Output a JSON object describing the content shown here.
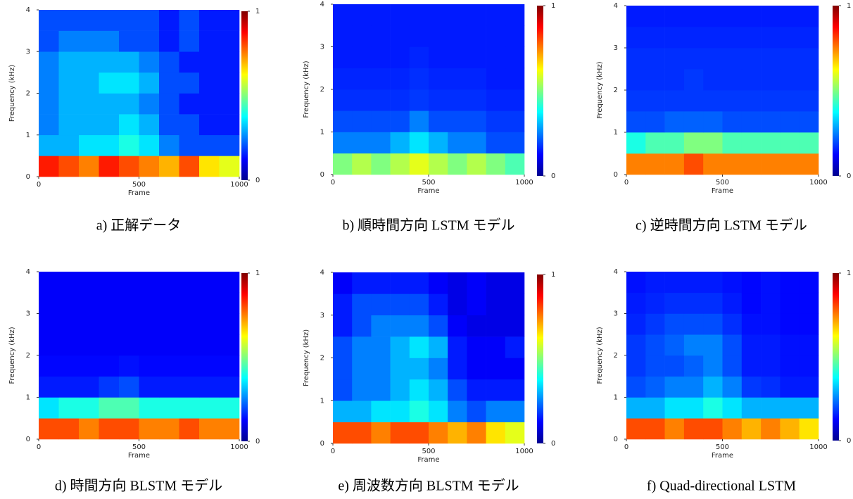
{
  "chart_data": [
    {
      "type": "heatmap",
      "caption": "a) 正解データ",
      "xlabel": "Frame",
      "ylabel": "Frequency (kHz)",
      "xlim": [
        0,
        1000
      ],
      "xticks": [
        0,
        500,
        1000
      ],
      "ylim": [
        0,
        4
      ],
      "yticks": [
        0,
        1,
        2,
        3,
        4
      ],
      "clim": [
        0,
        1
      ],
      "cticks": [
        0,
        1
      ],
      "z": [
        [
          0.85,
          0.8,
          0.75,
          0.85,
          0.8,
          0.75,
          0.7,
          0.8,
          0.65,
          0.6
        ],
        [
          0.3,
          0.3,
          0.35,
          0.35,
          0.4,
          0.35,
          0.25,
          0.2,
          0.2,
          0.2
        ],
        [
          0.25,
          0.3,
          0.3,
          0.3,
          0.35,
          0.3,
          0.2,
          0.2,
          0.15,
          0.15
        ],
        [
          0.25,
          0.3,
          0.3,
          0.3,
          0.3,
          0.25,
          0.2,
          0.15,
          0.15,
          0.15
        ],
        [
          0.25,
          0.3,
          0.3,
          0.35,
          0.35,
          0.3,
          0.2,
          0.2,
          0.15,
          0.15
        ],
        [
          0.25,
          0.3,
          0.3,
          0.3,
          0.3,
          0.25,
          0.2,
          0.15,
          0.15,
          0.15
        ],
        [
          0.2,
          0.25,
          0.25,
          0.25,
          0.2,
          0.2,
          0.15,
          0.2,
          0.15,
          0.15
        ],
        [
          0.2,
          0.2,
          0.2,
          0.2,
          0.2,
          0.2,
          0.15,
          0.2,
          0.15,
          0.15
        ]
      ]
    },
    {
      "type": "heatmap",
      "caption": "b) 順時間方向 LSTM モデル",
      "xlabel": "Frame",
      "ylabel": "Frequency (kHz)",
      "xlim": [
        0,
        1000
      ],
      "xticks": [
        0,
        500,
        1000
      ],
      "ylim": [
        0,
        4
      ],
      "yticks": [
        0,
        1,
        2,
        3,
        4
      ],
      "clim": [
        0,
        1
      ],
      "cticks": [
        0,
        1
      ],
      "z": [
        [
          0.5,
          0.55,
          0.5,
          0.55,
          0.6,
          0.55,
          0.5,
          0.55,
          0.5,
          0.45
        ],
        [
          0.25,
          0.25,
          0.25,
          0.3,
          0.35,
          0.3,
          0.25,
          0.25,
          0.2,
          0.2
        ],
        [
          0.2,
          0.2,
          0.2,
          0.2,
          0.25,
          0.2,
          0.2,
          0.2,
          0.18,
          0.18
        ],
        [
          0.17,
          0.17,
          0.17,
          0.17,
          0.18,
          0.17,
          0.17,
          0.17,
          0.16,
          0.16
        ],
        [
          0.16,
          0.16,
          0.16,
          0.16,
          0.17,
          0.16,
          0.16,
          0.16,
          0.15,
          0.15
        ],
        [
          0.15,
          0.15,
          0.15,
          0.15,
          0.16,
          0.15,
          0.15,
          0.15,
          0.15,
          0.15
        ],
        [
          0.15,
          0.15,
          0.15,
          0.15,
          0.15,
          0.15,
          0.15,
          0.15,
          0.15,
          0.15
        ],
        [
          0.15,
          0.15,
          0.15,
          0.15,
          0.15,
          0.15,
          0.15,
          0.15,
          0.15,
          0.15
        ]
      ]
    },
    {
      "type": "heatmap",
      "caption": "c) 逆時間方向 LSTM モデル",
      "xlabel": "Frame",
      "ylabel": "Frequency (kHz)",
      "xlim": [
        0,
        1000
      ],
      "xticks": [
        0,
        500,
        1000
      ],
      "ylim": [
        0,
        4
      ],
      "yticks": [
        0,
        1,
        2,
        3,
        4
      ],
      "clim": [
        0,
        1
      ],
      "cticks": [
        0,
        1
      ],
      "z": [
        [
          0.75,
          0.75,
          0.75,
          0.8,
          0.75,
          0.75,
          0.75,
          0.75,
          0.75,
          0.75
        ],
        [
          0.4,
          0.45,
          0.45,
          0.5,
          0.5,
          0.45,
          0.45,
          0.45,
          0.45,
          0.45
        ],
        [
          0.2,
          0.2,
          0.22,
          0.22,
          0.22,
          0.2,
          0.2,
          0.2,
          0.2,
          0.2
        ],
        [
          0.18,
          0.18,
          0.18,
          0.18,
          0.18,
          0.18,
          0.18,
          0.18,
          0.18,
          0.18
        ],
        [
          0.17,
          0.17,
          0.17,
          0.18,
          0.17,
          0.17,
          0.17,
          0.17,
          0.17,
          0.17
        ],
        [
          0.17,
          0.17,
          0.17,
          0.17,
          0.17,
          0.17,
          0.17,
          0.17,
          0.17,
          0.17
        ],
        [
          0.16,
          0.16,
          0.16,
          0.16,
          0.16,
          0.16,
          0.16,
          0.16,
          0.16,
          0.16
        ],
        [
          0.15,
          0.15,
          0.15,
          0.15,
          0.15,
          0.15,
          0.15,
          0.15,
          0.15,
          0.15
        ]
      ]
    },
    {
      "type": "heatmap",
      "caption": "d) 時間方向 BLSTM モデル",
      "xlabel": "Frame",
      "ylabel": "Frequency (kHz)",
      "xlim": [
        0,
        1000
      ],
      "xticks": [
        0,
        500,
        1000
      ],
      "ylim": [
        0,
        4
      ],
      "yticks": [
        0,
        1,
        2,
        3,
        4
      ],
      "clim": [
        0,
        1
      ],
      "cticks": [
        0,
        1
      ],
      "z": [
        [
          0.8,
          0.8,
          0.75,
          0.8,
          0.8,
          0.75,
          0.75,
          0.8,
          0.75,
          0.75
        ],
        [
          0.35,
          0.4,
          0.4,
          0.45,
          0.45,
          0.4,
          0.4,
          0.4,
          0.4,
          0.4
        ],
        [
          0.15,
          0.15,
          0.15,
          0.18,
          0.2,
          0.15,
          0.15,
          0.15,
          0.15,
          0.15
        ],
        [
          0.13,
          0.13,
          0.13,
          0.13,
          0.14,
          0.13,
          0.13,
          0.13,
          0.13,
          0.13
        ],
        [
          0.12,
          0.12,
          0.12,
          0.12,
          0.12,
          0.12,
          0.12,
          0.12,
          0.12,
          0.12
        ],
        [
          0.12,
          0.12,
          0.12,
          0.12,
          0.12,
          0.12,
          0.12,
          0.12,
          0.12,
          0.12
        ],
        [
          0.12,
          0.12,
          0.12,
          0.12,
          0.12,
          0.12,
          0.12,
          0.12,
          0.12,
          0.12
        ],
        [
          0.12,
          0.12,
          0.12,
          0.12,
          0.12,
          0.12,
          0.12,
          0.12,
          0.12,
          0.12
        ]
      ]
    },
    {
      "type": "heatmap",
      "caption": "e) 周波数方向 BLSTM モデル",
      "xlabel": "Frame",
      "ylabel": "Frequency (kHz)",
      "xlim": [
        0,
        1000
      ],
      "xticks": [
        0,
        500,
        1000
      ],
      "ylim": [
        0,
        4
      ],
      "yticks": [
        0,
        1,
        2,
        3,
        4
      ],
      "clim": [
        0,
        1
      ],
      "cticks": [
        0,
        1
      ],
      "z": [
        [
          0.8,
          0.8,
          0.75,
          0.8,
          0.8,
          0.75,
          0.7,
          0.75,
          0.65,
          0.6
        ],
        [
          0.3,
          0.3,
          0.35,
          0.35,
          0.4,
          0.35,
          0.25,
          0.2,
          0.25,
          0.25
        ],
        [
          0.2,
          0.25,
          0.25,
          0.3,
          0.35,
          0.3,
          0.2,
          0.15,
          0.15,
          0.15
        ],
        [
          0.2,
          0.25,
          0.25,
          0.3,
          0.3,
          0.25,
          0.15,
          0.12,
          0.12,
          0.12
        ],
        [
          0.2,
          0.25,
          0.25,
          0.3,
          0.35,
          0.3,
          0.15,
          0.12,
          0.12,
          0.15
        ],
        [
          0.15,
          0.2,
          0.25,
          0.25,
          0.25,
          0.2,
          0.12,
          0.1,
          0.1,
          0.1
        ],
        [
          0.15,
          0.2,
          0.2,
          0.2,
          0.2,
          0.15,
          0.1,
          0.12,
          0.1,
          0.1
        ],
        [
          0.12,
          0.15,
          0.15,
          0.15,
          0.15,
          0.12,
          0.1,
          0.12,
          0.1,
          0.1
        ]
      ]
    },
    {
      "type": "heatmap",
      "caption": "f) Quad-directional LSTM",
      "xlabel": "Frame",
      "ylabel": "Frequency (kHz)",
      "xlim": [
        0,
        1000
      ],
      "xticks": [
        0,
        500,
        1000
      ],
      "ylim": [
        0,
        4
      ],
      "yticks": [
        0,
        1,
        2,
        3,
        4
      ],
      "clim": [
        0,
        1
      ],
      "cticks": [
        0,
        1
      ],
      "z": [
        [
          0.8,
          0.8,
          0.75,
          0.8,
          0.8,
          0.75,
          0.7,
          0.75,
          0.7,
          0.65
        ],
        [
          0.3,
          0.3,
          0.35,
          0.35,
          0.4,
          0.35,
          0.3,
          0.3,
          0.3,
          0.3
        ],
        [
          0.2,
          0.22,
          0.25,
          0.25,
          0.3,
          0.25,
          0.18,
          0.17,
          0.15,
          0.15
        ],
        [
          0.18,
          0.2,
          0.2,
          0.22,
          0.25,
          0.2,
          0.15,
          0.15,
          0.14,
          0.14
        ],
        [
          0.18,
          0.2,
          0.22,
          0.25,
          0.25,
          0.2,
          0.15,
          0.15,
          0.14,
          0.14
        ],
        [
          0.16,
          0.18,
          0.2,
          0.2,
          0.2,
          0.17,
          0.14,
          0.14,
          0.13,
          0.13
        ],
        [
          0.15,
          0.16,
          0.17,
          0.17,
          0.17,
          0.15,
          0.13,
          0.14,
          0.13,
          0.13
        ],
        [
          0.14,
          0.15,
          0.15,
          0.15,
          0.15,
          0.14,
          0.13,
          0.14,
          0.13,
          0.13
        ]
      ]
    }
  ]
}
